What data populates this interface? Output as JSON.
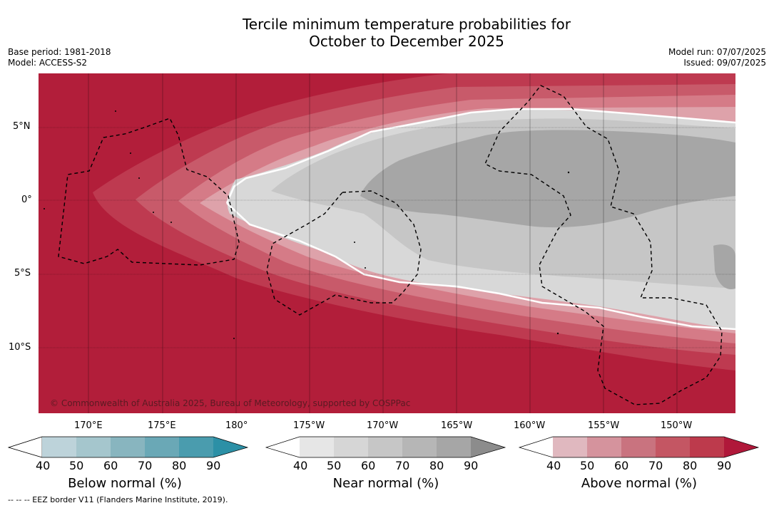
{
  "header": {
    "title_line1": "Tercile minimum temperature probabilities for",
    "title_line2": "October to December 2025",
    "base_period": "Base period: 1981-2018",
    "model": "Model: ACCESS-S2",
    "model_run": "Model run: 07/07/2025",
    "issued": "Issued: 09/07/2025"
  },
  "map": {
    "lat_labels": [
      "5°N",
      "0°",
      "5°S",
      "10°S"
    ],
    "lon_labels": [
      "170°E",
      "175°E",
      "180°",
      "175°W",
      "170°W",
      "165°W",
      "160°W",
      "155°W",
      "150°W"
    ],
    "credit": "© Commonwealth of Australia 2025, Bureau of Meteorology, supported by COSPPac",
    "colors": {
      "above_90": "#b21e3a",
      "above_80": "#be3a50",
      "above_70": "#c85a6a",
      "above_60": "#d57b87",
      "above_50": "#dea2aa",
      "near_50": "#d8d8d8",
      "near_60": "#c6c6c6",
      "near_70": "#a6a6a6",
      "boundary": "#ffffff"
    }
  },
  "colorbars": [
    {
      "name": "below",
      "title": "Below normal (%)",
      "ticks": [
        "40",
        "50",
        "60",
        "70",
        "80",
        "90"
      ],
      "colors": [
        "#ffffff",
        "#bdd3da",
        "#a5c6cd",
        "#88b5bf",
        "#6aa8b6",
        "#4a9cae",
        "#2c90a6"
      ]
    },
    {
      "name": "near",
      "title": "Near normal (%)",
      "ticks": [
        "40",
        "50",
        "60",
        "70",
        "80",
        "90"
      ],
      "colors": [
        "#ffffff",
        "#e6e6e6",
        "#d6d6d6",
        "#c6c6c6",
        "#b6b6b6",
        "#a6a6a6",
        "#8c8c8c"
      ]
    },
    {
      "name": "above",
      "title": "Above normal (%)",
      "ticks": [
        "40",
        "50",
        "60",
        "70",
        "80",
        "90"
      ],
      "colors": [
        "#ffffff",
        "#e0b8bf",
        "#d5939d",
        "#c9737f",
        "#c45663",
        "#bd3a4c",
        "#b0183a"
      ]
    }
  ],
  "footnote": "--  --  -- EEZ border V11 (Flanders Marine Institute, 2019)."
}
